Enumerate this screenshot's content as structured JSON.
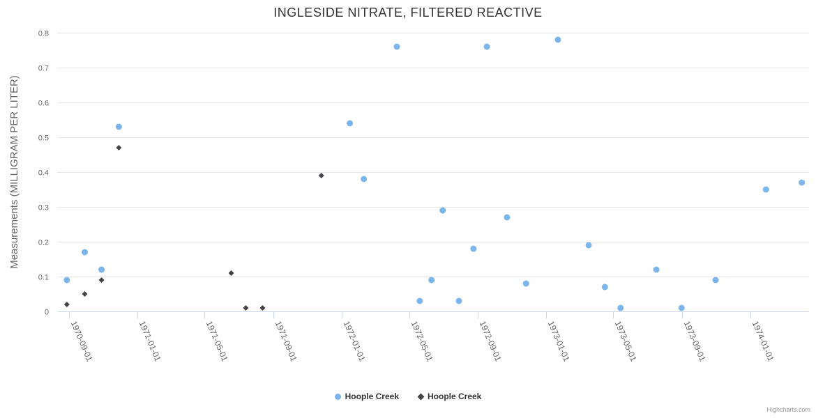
{
  "title": "INGLESIDE NITRATE, FILTERED REACTIVE",
  "legend": {
    "items": [
      {
        "label": "Hoople Creek",
        "marker": "circle",
        "color": "#7cb5ec"
      },
      {
        "label": "Hoople Creek",
        "marker": "diamond",
        "color": "#434348"
      }
    ]
  },
  "credits": {
    "label": "Highcharts.com"
  },
  "colors": {
    "series_blue": "#7cb5ec",
    "series_dark": "#434348",
    "gridline": "#e6e6e6",
    "axis_line": "#ccd6eb",
    "title_text": "#333333",
    "axis_text": "#666666",
    "credits_text": "#999999",
    "background": "#ffffff"
  },
  "chart_data": {
    "type": "scatter",
    "title": "INGLESIDE NITRATE, FILTERED REACTIVE",
    "xlabel": "",
    "ylabel": "Measurements (MILLIGRAM PER LITER)",
    "ylim": [
      0,
      0.8
    ],
    "y_ticks": [
      0,
      0.1,
      0.2,
      0.3,
      0.4,
      0.5,
      0.6,
      0.7,
      0.8
    ],
    "x_ticks": [
      "1970-09-01",
      "1971-01-01",
      "1971-05-01",
      "1971-09-01",
      "1972-01-01",
      "1972-05-01",
      "1972-09-01",
      "1973-01-01",
      "1973-05-01",
      "1973-09-01",
      "1974-01-01"
    ],
    "x_range": [
      "1970-08-12",
      "1974-04-16"
    ],
    "grid": true,
    "legend_position": "bottom",
    "series": [
      {
        "name": "Hoople Creek",
        "marker": "circle",
        "color": "#7cb5ec",
        "points": [
          {
            "date": "1970-08-28",
            "value": 0.09
          },
          {
            "date": "1970-09-29",
            "value": 0.17
          },
          {
            "date": "1970-10-29",
            "value": 0.12
          },
          {
            "date": "1970-11-29",
            "value": 0.53
          },
          {
            "date": "1972-01-16",
            "value": 0.54
          },
          {
            "date": "1972-02-10",
            "value": 0.38
          },
          {
            "date": "1972-04-09",
            "value": 0.76
          },
          {
            "date": "1972-05-20",
            "value": 0.03
          },
          {
            "date": "1972-06-10",
            "value": 0.09
          },
          {
            "date": "1972-06-30",
            "value": 0.29
          },
          {
            "date": "1972-07-29",
            "value": 0.03
          },
          {
            "date": "1972-08-24",
            "value": 0.18
          },
          {
            "date": "1972-09-17",
            "value": 0.76
          },
          {
            "date": "1972-10-23",
            "value": 0.27
          },
          {
            "date": "1972-11-26",
            "value": 0.08
          },
          {
            "date": "1973-01-22",
            "value": 0.78
          },
          {
            "date": "1973-03-18",
            "value": 0.19
          },
          {
            "date": "1973-04-16",
            "value": 0.07
          },
          {
            "date": "1973-05-14",
            "value": 0.01
          },
          {
            "date": "1973-07-17",
            "value": 0.12
          },
          {
            "date": "1973-08-31",
            "value": 0.01
          },
          {
            "date": "1973-10-31",
            "value": 0.09
          },
          {
            "date": "1974-01-29",
            "value": 0.35
          },
          {
            "date": "1974-04-03",
            "value": 0.37
          }
        ]
      },
      {
        "name": "Hoople Creek",
        "marker": "diamond",
        "color": "#434348",
        "points": [
          {
            "date": "1970-08-28",
            "value": 0.02
          },
          {
            "date": "1970-09-29",
            "value": 0.05
          },
          {
            "date": "1970-10-29",
            "value": 0.09
          },
          {
            "date": "1970-11-29",
            "value": 0.47
          },
          {
            "date": "1971-06-18",
            "value": 0.11
          },
          {
            "date": "1971-07-14",
            "value": 0.01
          },
          {
            "date": "1971-08-13",
            "value": 0.01
          },
          {
            "date": "1971-11-26",
            "value": 0.39
          }
        ]
      }
    ]
  }
}
